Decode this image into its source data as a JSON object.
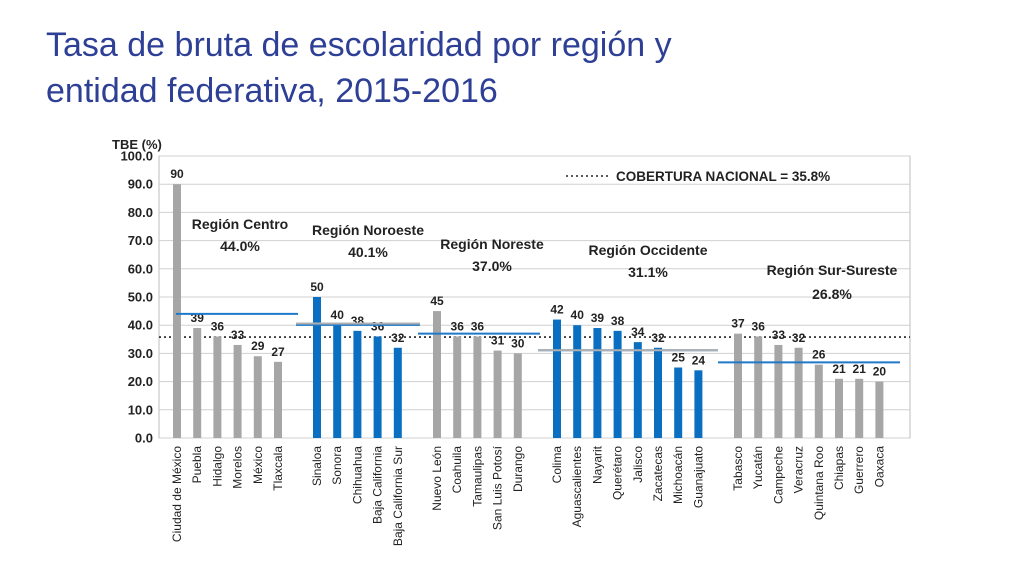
{
  "page": {
    "title_line1": "Tasa de bruta de escolaridad por región y",
    "title_line2": "entidad federativa, 2015-2016"
  },
  "chart_data": {
    "type": "bar",
    "ylabel": "TBE (%)",
    "ylim": [
      0,
      100
    ],
    "yticks": [
      "0.0",
      "10.0",
      "20.0",
      "30.0",
      "40.0",
      "50.0",
      "60.0",
      "70.0",
      "80.0",
      "90.0",
      "100.0"
    ],
    "grid": true,
    "national_line": {
      "label": "COBERTURA NACIONAL = 35.8%",
      "value": 35.8
    },
    "colors": {
      "gray": "#a6a6a6",
      "blue": "#0b6fc1",
      "avg_line": "#1f78c8",
      "grid": "#d0d0d0"
    },
    "regions": [
      {
        "name": "Región Centro",
        "average_label": "44.0%",
        "average": 44.0,
        "color": "gray",
        "categories": [
          "Ciudad de México",
          "Puebla",
          "Hidalgo",
          "Morelos",
          "México",
          "Tlaxcala"
        ],
        "values": [
          90,
          39,
          36,
          33,
          29,
          27
        ]
      },
      {
        "name": "Región Noroeste",
        "average_label": "40.1%",
        "average": 40.1,
        "color": "blue",
        "categories": [
          "Sinaloa",
          "Sonora",
          "Chihuahua",
          "Baja California",
          "Baja California Sur"
        ],
        "values": [
          50,
          40,
          38,
          36,
          32
        ]
      },
      {
        "name": "Región Noreste",
        "average_label": "37.0%",
        "average": 37.0,
        "color": "gray",
        "categories": [
          "Nuevo León",
          "Coahuila",
          "Tamaulipas",
          "San Luis Potosí",
          "Durango"
        ],
        "values": [
          45,
          36,
          36,
          31,
          30
        ]
      },
      {
        "name": "Región Occidente",
        "average_label": "31.1%",
        "average": 31.1,
        "color": "blue",
        "categories": [
          "Colima",
          "Aguascalientes",
          "Nayarit",
          "Querétaro",
          "Jalisco",
          "Zacatecas",
          "Michoacán",
          "Guanajuato"
        ],
        "values": [
          42,
          40,
          39,
          38,
          34,
          32,
          25,
          24
        ]
      },
      {
        "name": "Región Sur-Sureste",
        "average_label": "26.8%",
        "average": 26.8,
        "color": "gray",
        "categories": [
          "Tabasco",
          "Yucatán",
          "Campeche",
          "Veracruz",
          "Quintana Roo",
          "Chiapas",
          "Guerrero",
          "Oaxaca"
        ],
        "values": [
          37,
          36,
          33,
          32,
          26,
          21,
          21,
          20
        ]
      }
    ]
  }
}
